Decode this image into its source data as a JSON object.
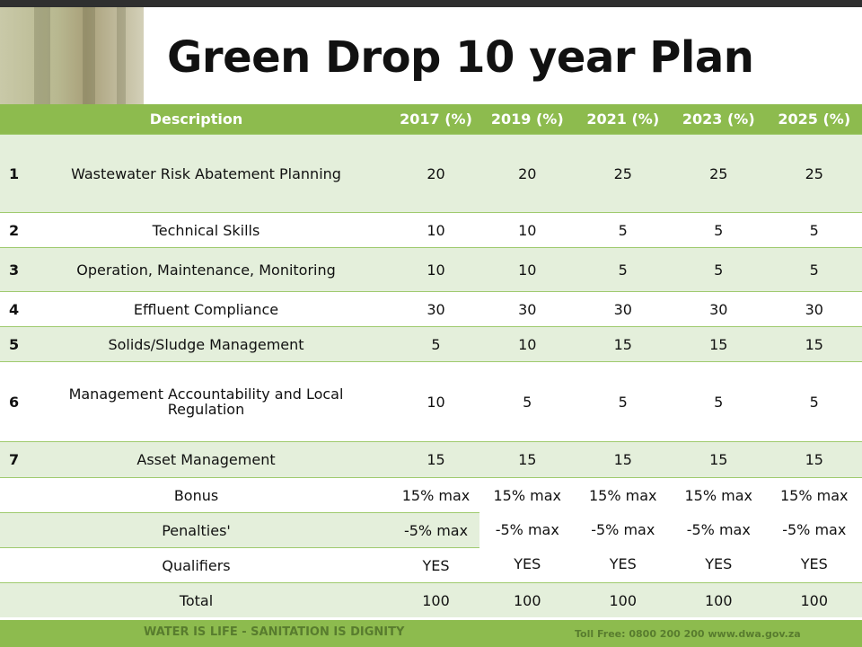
{
  "title": "Green Drop 10 year Plan",
  "table": {
    "headers": [
      "Description",
      "2017 (%)",
      "2019 (%)",
      "2021 (%)",
      "2023 (%)",
      "2025 (%)"
    ],
    "rows": [
      {
        "num": "1",
        "desc": "Wastewater Risk Abatement Planning",
        "values": [
          "20",
          "20",
          "25",
          "25",
          "25"
        ]
      },
      {
        "num": "2",
        "desc": "Technical Skills",
        "values": [
          "10",
          "10",
          "5",
          "5",
          "5"
        ]
      },
      {
        "num": "3",
        "desc": "Operation, Maintenance, Monitoring",
        "values": [
          "10",
          "10",
          "5",
          "5",
          "5"
        ]
      },
      {
        "num": "4",
        "desc": "Effluent Compliance",
        "values": [
          "30",
          "30",
          "30",
          "30",
          "30"
        ]
      },
      {
        "num": "5",
        "desc": "Solids/Sludge Management",
        "values": [
          "5",
          "10",
          "15",
          "15",
          "15"
        ]
      },
      {
        "num": "6",
        "desc": "Management Accountability and Local Regulation",
        "values": [
          "10",
          "5",
          "5",
          "5",
          "5"
        ]
      },
      {
        "num": "7",
        "desc": "Asset Management",
        "values": [
          "15",
          "15",
          "15",
          "15",
          "15"
        ]
      }
    ],
    "extras": {
      "bonus": {
        "label": "Bonus",
        "v2017": "15% max",
        "later": "15% max"
      },
      "penalties": {
        "label": "Penalties'",
        "v2017": "-5% max",
        "later": "-5% max"
      },
      "qualifiers": {
        "label": "Qualifiers",
        "v2017": "YES",
        "later": "YES"
      }
    },
    "total": {
      "label": "Total",
      "values": [
        "100",
        "100",
        "100",
        "100",
        "100"
      ]
    }
  },
  "footer": {
    "left": "WATER IS LIFE - SANITATION IS DIGNITY",
    "right": "Toll Free: 0800 200 200     www.dwa.gov.za"
  },
  "colors": {
    "accent": "#8dbb4e",
    "row_alt": "#e4efdb"
  }
}
